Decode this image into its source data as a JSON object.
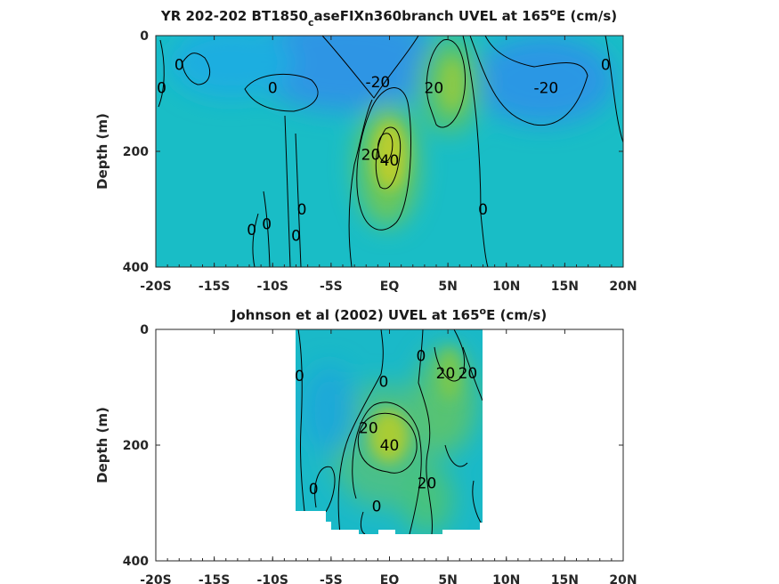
{
  "chart_data": [
    {
      "type": "heatmap",
      "title": "YR 202-202 BT1850",
      "title_sub": "c",
      "title_rest": "aseFIXn360branch UVEL at 165",
      "title_sup": "o",
      "title_end": "E (cm/s)",
      "ylabel": "Depth (m)",
      "xlabel": "",
      "xlim": [
        -20,
        20
      ],
      "ylim": [
        400,
        0
      ],
      "x_ticks": [
        "-20S",
        "-15S",
        "-10S",
        "-5S",
        "EQ",
        "5N",
        "10N",
        "15N",
        "20N"
      ],
      "x_tick_values": [
        -20,
        -15,
        -10,
        -5,
        0,
        5,
        10,
        15,
        20
      ],
      "y_ticks": [
        "0",
        "200",
        "400"
      ],
      "y_tick_values": [
        0,
        200,
        400
      ],
      "colormap": [
        "#3a8ee6",
        "#14b2d8",
        "#21c2b0",
        "#7ac84a",
        "#c8d02a"
      ],
      "features": [
        {
          "x": 0,
          "depth": 190,
          "value": 45
        },
        {
          "x": 5,
          "depth": 90,
          "value": 25
        },
        {
          "x": -2,
          "depth": 60,
          "value": -22
        },
        {
          "x": 14,
          "depth": 100,
          "value": -22
        }
      ],
      "contour_labels": [
        {
          "text": "0",
          "x": -18,
          "depth": 50
        },
        {
          "text": "0",
          "x": -19.5,
          "depth": 90
        },
        {
          "text": "0",
          "x": -10,
          "depth": 90
        },
        {
          "text": "0",
          "x": 18.5,
          "depth": 50
        },
        {
          "text": "-20",
          "x": -1,
          "depth": 80
        },
        {
          "text": "20",
          "x": 3.8,
          "depth": 90
        },
        {
          "text": "-20",
          "x": 13.4,
          "depth": 90
        },
        {
          "text": "20",
          "x": -1.6,
          "depth": 205
        },
        {
          "text": "40",
          "x": 0,
          "depth": 215
        },
        {
          "text": "0",
          "x": -7.5,
          "depth": 300
        },
        {
          "text": "0",
          "x": 8,
          "depth": 300
        },
        {
          "text": "0",
          "x": -11.8,
          "depth": 335
        },
        {
          "text": "0",
          "x": -10.5,
          "depth": 325
        },
        {
          "text": "0",
          "x": -8,
          "depth": 345
        }
      ]
    },
    {
      "type": "heatmap",
      "title": "Johnson et al (2002) UVEL at 165",
      "title_sup": "o",
      "title_end": "E (cm/s)",
      "ylabel": "Depth (m)",
      "xlabel": "",
      "xlim": [
        -20,
        20
      ],
      "ylim": [
        400,
        0
      ],
      "x_ticks": [
        "-20S",
        "-15S",
        "-10S",
        "-5S",
        "EQ",
        "5N",
        "10N",
        "15N",
        "20N"
      ],
      "x_tick_values": [
        -20,
        -15,
        -10,
        -5,
        0,
        5,
        10,
        15,
        20
      ],
      "y_ticks": [
        "0",
        "200",
        "400"
      ],
      "y_tick_values": [
        0,
        200,
        400
      ],
      "data_x_range": [
        -8,
        8
      ],
      "features": [
        {
          "x": 0,
          "depth": 180,
          "value": 40
        },
        {
          "x": 4.5,
          "depth": 90,
          "value": 22
        },
        {
          "x": 3,
          "depth": 260,
          "value": 22
        }
      ],
      "contour_labels": [
        {
          "text": "0",
          "x": -7.7,
          "depth": 80
        },
        {
          "text": "0",
          "x": -0.5,
          "depth": 90
        },
        {
          "text": "0",
          "x": 2.7,
          "depth": 45
        },
        {
          "text": "20",
          "x": 4.8,
          "depth": 75
        },
        {
          "text": "20",
          "x": 6.7,
          "depth": 75
        },
        {
          "text": "20",
          "x": -1.8,
          "depth": 170
        },
        {
          "text": "40",
          "x": 0,
          "depth": 200
        },
        {
          "text": "20",
          "x": 3.2,
          "depth": 265
        },
        {
          "text": "0",
          "x": -6.5,
          "depth": 275
        },
        {
          "text": "0",
          "x": -1.1,
          "depth": 305
        }
      ]
    }
  ]
}
